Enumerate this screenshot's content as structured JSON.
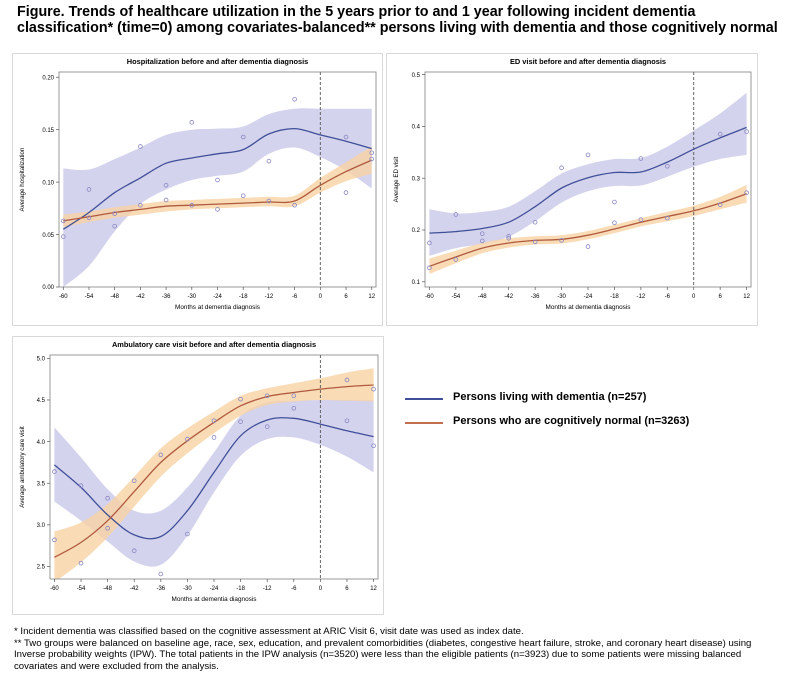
{
  "figure": {
    "title_line1": "Figure. Trends of healthcare utilization in the 5 years prior to and 1 year following incident dementia",
    "title_line2": "classification* (time=0) among covariates-balanced** persons living with dementia and those cognitively normal"
  },
  "colors": {
    "dementia_line": "#3f4f99",
    "dementia_band": "#c9c8e8",
    "normal_line": "#b05a3f",
    "normal_band": "#f8d2a4",
    "marker": "#8a88c4"
  },
  "legend": [
    {
      "label": "Persons living with dementia (n=257)",
      "color": "#3f4f99"
    },
    {
      "label": "Persons who are cognitively normal (n=3263)",
      "color": "#c0704e"
    }
  ],
  "chart_data": [
    {
      "type": "line",
      "title": "Hospitalization before and after dementia diagnosis",
      "xlabel": "Months at dementia diagnosis",
      "ylabel": "Average hospitalization",
      "xticks": [
        -60,
        -54,
        -48,
        -42,
        -36,
        -30,
        -24,
        -18,
        -12,
        -6,
        0,
        6,
        12
      ],
      "yticks": [
        0.0,
        0.05,
        0.1,
        0.15,
        0.2
      ],
      "ytick_labels": [
        "0.00",
        "0.05",
        "0.10",
        "0.15",
        "0.20"
      ],
      "xlim": [
        -61,
        13
      ],
      "ylim": [
        0,
        0.205
      ],
      "reference_x": 0,
      "series": [
        {
          "key": "dementia",
          "x": [
            -60,
            -54,
            -48,
            -42,
            -36,
            -30,
            -24,
            -18,
            -12,
            -6,
            0,
            6,
            12
          ],
          "fit": [
            0.055,
            0.071,
            0.09,
            0.104,
            0.118,
            0.123,
            0.127,
            0.131,
            0.146,
            0.151,
            0.145,
            0.139,
            0.132
          ],
          "lower": [
            0.0,
            0.02,
            0.053,
            0.079,
            0.093,
            0.102,
            0.106,
            0.11,
            0.127,
            0.133,
            0.124,
            0.111,
            0.094
          ],
          "upper": [
            0.113,
            0.112,
            0.122,
            0.133,
            0.145,
            0.15,
            0.151,
            0.153,
            0.165,
            0.17,
            0.17,
            0.17,
            0.17
          ],
          "points_x": [
            -60,
            -54,
            -48,
            -42,
            -36,
            -30,
            -24,
            -18,
            -12,
            -6,
            6,
            12
          ],
          "points_y": [
            0.048,
            0.093,
            0.058,
            0.134,
            0.097,
            0.157,
            0.102,
            0.143,
            0.12,
            0.179,
            0.143,
            0.128
          ]
        },
        {
          "key": "normal",
          "x": [
            -60,
            -54,
            -48,
            -42,
            -36,
            -30,
            -24,
            -18,
            -12,
            -6,
            0,
            6,
            12
          ],
          "fit": [
            0.063,
            0.067,
            0.071,
            0.074,
            0.077,
            0.078,
            0.079,
            0.08,
            0.081,
            0.082,
            0.097,
            0.11,
            0.121
          ],
          "lower": [
            0.057,
            0.062,
            0.066,
            0.069,
            0.072,
            0.074,
            0.075,
            0.076,
            0.077,
            0.077,
            0.09,
            0.101,
            0.108
          ],
          "upper": [
            0.069,
            0.072,
            0.076,
            0.079,
            0.082,
            0.083,
            0.084,
            0.085,
            0.086,
            0.087,
            0.104,
            0.119,
            0.134
          ],
          "points_x": [
            -60,
            -54,
            -48,
            -42,
            -36,
            -30,
            -24,
            -18,
            -12,
            -6,
            6,
            12
          ],
          "points_y": [
            0.063,
            0.066,
            0.07,
            0.078,
            0.083,
            0.078,
            0.074,
            0.087,
            0.082,
            0.078,
            0.09,
            0.122
          ]
        }
      ]
    },
    {
      "type": "line",
      "title": "ED visit before and after dementia diagnosis",
      "xlabel": "Months at dementia diagnosis",
      "ylabel": "Average ED visit",
      "xticks": [
        -60,
        -54,
        -48,
        -42,
        -36,
        -30,
        -24,
        -18,
        -12,
        -6,
        0,
        6,
        12
      ],
      "yticks": [
        0.1,
        0.2,
        0.3,
        0.4,
        0.5
      ],
      "ytick_labels": [
        "0.1",
        "0.2",
        "0.3",
        "0.4",
        "0.5"
      ],
      "xlim": [
        -61,
        13
      ],
      "ylim": [
        0.09,
        0.505
      ],
      "reference_x": 0,
      "series": [
        {
          "key": "dementia",
          "x": [
            -60,
            -54,
            -48,
            -42,
            -36,
            -30,
            -24,
            -18,
            -12,
            -6,
            0,
            6,
            12
          ],
          "fit": [
            0.194,
            0.197,
            0.203,
            0.215,
            0.245,
            0.281,
            0.301,
            0.311,
            0.312,
            0.331,
            0.356,
            0.378,
            0.398
          ],
          "lower": [
            0.15,
            0.165,
            0.173,
            0.187,
            0.217,
            0.253,
            0.275,
            0.285,
            0.286,
            0.303,
            0.322,
            0.337,
            0.345
          ],
          "upper": [
            0.24,
            0.232,
            0.235,
            0.245,
            0.275,
            0.309,
            0.327,
            0.337,
            0.339,
            0.361,
            0.392,
            0.425,
            0.465
          ],
          "points_x": [
            -60,
            -54,
            -48,
            -42,
            -36,
            -30,
            -24,
            -18,
            -12,
            -6,
            6,
            12
          ],
          "points_y": [
            0.175,
            0.23,
            0.193,
            0.188,
            0.215,
            0.32,
            0.345,
            0.254,
            0.338,
            0.323,
            0.385,
            0.39
          ]
        },
        {
          "key": "normal",
          "x": [
            -60,
            -54,
            -48,
            -42,
            -36,
            -30,
            -24,
            -18,
            -12,
            -6,
            0,
            6,
            12
          ],
          "fit": [
            0.13,
            0.148,
            0.165,
            0.175,
            0.18,
            0.182,
            0.19,
            0.202,
            0.215,
            0.226,
            0.237,
            0.252,
            0.27
          ],
          "lower": [
            0.115,
            0.136,
            0.155,
            0.166,
            0.172,
            0.174,
            0.182,
            0.194,
            0.207,
            0.217,
            0.227,
            0.24,
            0.253
          ],
          "upper": [
            0.145,
            0.16,
            0.175,
            0.184,
            0.188,
            0.19,
            0.198,
            0.21,
            0.223,
            0.235,
            0.247,
            0.264,
            0.287
          ],
          "points_x": [
            -60,
            -54,
            -48,
            -42,
            -36,
            -30,
            -24,
            -18,
            -12,
            -6,
            6,
            12
          ],
          "points_y": [
            0.127,
            0.143,
            0.179,
            0.184,
            0.177,
            0.18,
            0.168,
            0.214,
            0.22,
            0.223,
            0.249,
            0.272
          ]
        }
      ]
    },
    {
      "type": "line",
      "title": "Ambulatory care visit before and after dementia diagnosis",
      "xlabel": "Months at dementia diagnosis",
      "ylabel": "Average ambulatory care visit",
      "xticks": [
        -60,
        -54,
        -48,
        -42,
        -36,
        -30,
        -24,
        -18,
        -12,
        -6,
        0,
        6,
        12
      ],
      "yticks": [
        2.5,
        3.0,
        3.5,
        4.0,
        4.5,
        5.0
      ],
      "ytick_labels": [
        "2.5",
        "3.0",
        "3.5",
        "4.0",
        "4.5",
        "5.0"
      ],
      "xlim": [
        -61,
        13
      ],
      "ylim": [
        2.35,
        5.04
      ],
      "reference_x": 0,
      "series": [
        {
          "key": "dementia",
          "x": [
            -60,
            -54,
            -48,
            -42,
            -36,
            -30,
            -24,
            -18,
            -12,
            -6,
            0,
            6,
            12
          ],
          "fit": [
            3.72,
            3.45,
            3.12,
            2.88,
            2.86,
            3.17,
            3.63,
            4.07,
            4.26,
            4.28,
            4.21,
            4.13,
            4.06
          ],
          "lower": [
            3.28,
            3.05,
            2.8,
            2.56,
            2.52,
            2.87,
            3.39,
            3.83,
            4.03,
            4.05,
            3.96,
            3.82,
            3.63
          ],
          "upper": [
            4.17,
            3.81,
            3.43,
            3.17,
            3.17,
            3.45,
            3.87,
            4.31,
            4.47,
            4.49,
            4.5,
            4.5,
            4.5
          ],
          "points_x": [
            -60,
            -54,
            -48,
            -42,
            -36,
            -30,
            -24,
            -18,
            -12,
            -6,
            6,
            12
          ],
          "points_y": [
            3.64,
            3.47,
            3.32,
            2.69,
            2.41,
            2.89,
            4.05,
            4.24,
            4.18,
            4.4,
            4.25,
            3.95
          ]
        },
        {
          "key": "normal",
          "x": [
            -60,
            -54,
            -48,
            -42,
            -36,
            -30,
            -24,
            -18,
            -12,
            -6,
            0,
            6,
            12
          ],
          "fit": [
            2.61,
            2.79,
            3.05,
            3.4,
            3.75,
            4.01,
            4.23,
            4.43,
            4.54,
            4.59,
            4.63,
            4.66,
            4.68
          ],
          "lower": [
            2.31,
            2.55,
            2.85,
            3.22,
            3.58,
            3.86,
            4.1,
            4.31,
            4.44,
            4.48,
            4.5,
            4.49,
            4.48
          ],
          "upper": [
            2.92,
            3.03,
            3.25,
            3.58,
            3.92,
            4.16,
            4.36,
            4.55,
            4.64,
            4.7,
            4.76,
            4.83,
            4.88
          ],
          "points_x": [
            -60,
            -54,
            -48,
            -42,
            -36,
            -30,
            -24,
            -18,
            -12,
            -6,
            6,
            12
          ],
          "points_y": [
            2.82,
            2.54,
            2.96,
            3.53,
            3.84,
            4.03,
            4.25,
            4.51,
            4.55,
            4.55,
            4.74,
            4.63
          ]
        }
      ]
    }
  ],
  "footnotes": {
    "note1": "* Incident dementia was classified based on the cognitive assessment at ARIC Visit 6, visit date was used as index date.",
    "note2": "** Two groups were balanced on baseline age, race, sex, education, and prevalent comorbidities (diabetes, congestive heart failure, stroke, and coronary heart disease) using Inverse probability weights (IPW). The total patients in the IPW analysis (n=3520) were less than the eligible patients (n=3923) due to some patients were missing balanced covariates and were excluded from the analysis."
  }
}
